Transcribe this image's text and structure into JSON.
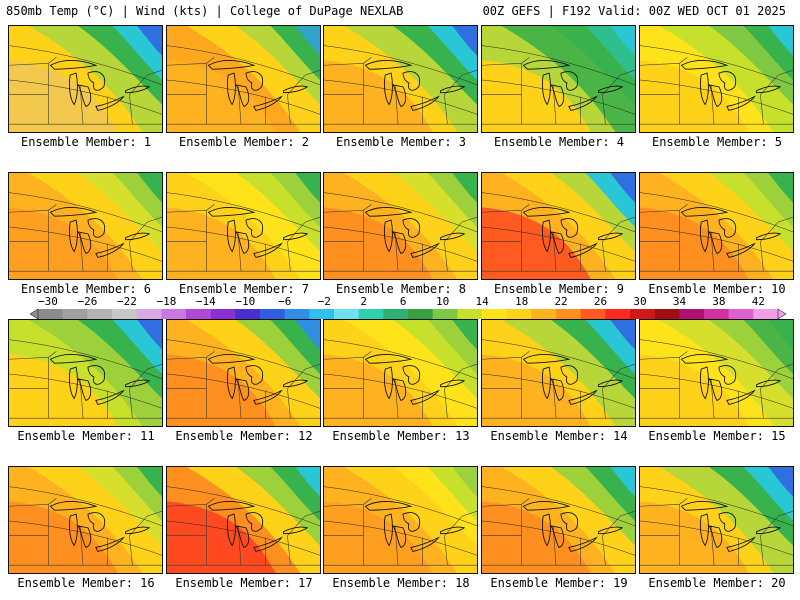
{
  "header": {
    "left": "850mb Temp (°C) | Wind (kts) | College of DuPage NEXLAB",
    "right": "00Z GEFS | F192 Valid: 00Z WED OCT 01 2025"
  },
  "members": [
    {
      "label": "Ensemble Member: 1",
      "palette": [
        "#f2c94c",
        "#ffd21a",
        "#b7d63a",
        "#37b24d",
        "#29c7d6",
        "#2f6fe0"
      ]
    },
    {
      "label": "Ensemble Member: 2",
      "palette": [
        "#ffb21f",
        "#ffa81f",
        "#ffd21a",
        "#b7d63a",
        "#37b24d",
        "#2fa3c8"
      ]
    },
    {
      "label": "Ensemble Member: 3",
      "palette": [
        "#ffb21f",
        "#ffd21a",
        "#b7d63a",
        "#37b24d",
        "#29c7d6",
        "#2f6fe0"
      ]
    },
    {
      "label": "Ensemble Member: 4",
      "palette": [
        "#ffd21a",
        "#b7d63a",
        "#4ab546",
        "#37b24d",
        "#2fbf8f",
        "#29c7d6"
      ]
    },
    {
      "label": "Ensemble Member: 5",
      "palette": [
        "#ffd21a",
        "#ffe31a",
        "#c6e02c",
        "#7fc843",
        "#37b24d",
        "#29c7d6"
      ]
    },
    {
      "label": "Ensemble Member: 6",
      "palette": [
        "#ff9f1f",
        "#ffb21f",
        "#ffd21a",
        "#d6e02c",
        "#9cd13b",
        "#37b24d"
      ]
    },
    {
      "label": "Ensemble Member: 7",
      "palette": [
        "#ffb21f",
        "#ffd21a",
        "#ffe31a",
        "#c6e02c",
        "#9cd13b",
        "#37b24d"
      ]
    },
    {
      "label": "Ensemble Member: 8",
      "palette": [
        "#ff8f1f",
        "#ffb21f",
        "#ffd21a",
        "#d6e02c",
        "#9cd13b",
        "#37b24d"
      ]
    },
    {
      "label": "Ensemble Member: 9",
      "palette": [
        "#ff5a1f",
        "#ffb21f",
        "#ffd21a",
        "#b7d63a",
        "#29c7d6",
        "#2f6fe0"
      ]
    },
    {
      "label": "Ensemble Member: 10",
      "palette": [
        "#ff8f1f",
        "#ffb21f",
        "#ffd21a",
        "#c6e02c",
        "#9cd13b",
        "#37b24d"
      ]
    },
    {
      "label": "Ensemble Member: 11",
      "palette": [
        "#ffd21a",
        "#c6e02c",
        "#9cd13b",
        "#37b24d",
        "#29c7d6",
        "#2f6fe0"
      ]
    },
    {
      "label": "Ensemble Member: 12",
      "palette": [
        "#ff8f1f",
        "#ffb21f",
        "#ffd21a",
        "#9cd13b",
        "#37b24d",
        "#2f8fe0"
      ]
    },
    {
      "label": "Ensemble Member: 13",
      "palette": [
        "#ffb21f",
        "#ffd21a",
        "#ffe31a",
        "#c6e02c",
        "#9cd13b",
        "#37b24d"
      ]
    },
    {
      "label": "Ensemble Member: 14",
      "palette": [
        "#ffb21f",
        "#ffd21a",
        "#b7d63a",
        "#37b24d",
        "#29c7d6",
        "#2f6fe0"
      ]
    },
    {
      "label": "Ensemble Member: 15",
      "palette": [
        "#ffd21a",
        "#ffe31a",
        "#d6e02c",
        "#9cd13b",
        "#4ab546",
        "#37b24d"
      ]
    },
    {
      "label": "Ensemble Member: 16",
      "palette": [
        "#ff8f1f",
        "#ffb21f",
        "#ffd21a",
        "#d6e02c",
        "#9cd13b",
        "#37b24d"
      ]
    },
    {
      "label": "Ensemble Member: 17",
      "palette": [
        "#ff4a1f",
        "#ff8f1f",
        "#ffd21a",
        "#9cd13b",
        "#37b24d",
        "#29c7d6"
      ]
    },
    {
      "label": "Ensemble Member: 18",
      "palette": [
        "#ff9f1f",
        "#ffb21f",
        "#ffd21a",
        "#ffe31a",
        "#c6e02c",
        "#9cd13b"
      ]
    },
    {
      "label": "Ensemble Member: 19",
      "palette": [
        "#ff8f1f",
        "#ffb21f",
        "#ffd21a",
        "#9cd13b",
        "#37b24d",
        "#29c7d6"
      ]
    },
    {
      "label": "Ensemble Member: 20",
      "palette": [
        "#ffb21f",
        "#ffd21a",
        "#b7d63a",
        "#37b24d",
        "#29c7d6",
        "#2f6fe0"
      ]
    }
  ],
  "colorbar": {
    "tick_labels": [
      "−30",
      "−26",
      "−22",
      "−18",
      "−14",
      "−10",
      "−6",
      "−2",
      "2",
      "6",
      "10",
      "14",
      "18",
      "22",
      "26",
      "30",
      "34",
      "38",
      "42"
    ],
    "colors": [
      "#8c8c8c",
      "#a0a0a0",
      "#b4b4b4",
      "#c8c8c8",
      "#d8a8e8",
      "#c878e0",
      "#b048d8",
      "#8a2fd0",
      "#4a2fd0",
      "#2f5fe0",
      "#2f8fe8",
      "#2fc0f0",
      "#6fe0f0",
      "#2fd0b0",
      "#2fb070",
      "#37a040",
      "#7fc843",
      "#c6e02c",
      "#ffe31a",
      "#ffd21a",
      "#ffb21f",
      "#ff8f1f",
      "#ff5a1f",
      "#ff2a1f",
      "#d01818",
      "#a01010",
      "#b01070",
      "#d030a0",
      "#e060d0",
      "#f0a0e8"
    ]
  }
}
